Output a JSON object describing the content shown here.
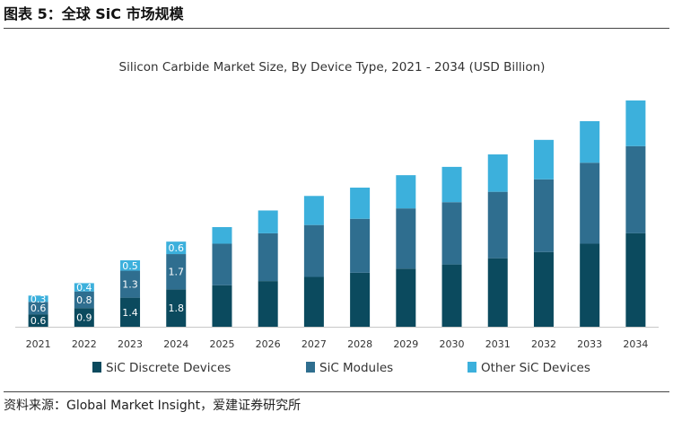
{
  "figure": {
    "title": "图表 5：全球 SiC 市场规模",
    "source": "资料来源：Global Market Insight，爱建证券研究所"
  },
  "chart_data": {
    "type": "bar",
    "stacked": true,
    "title": "Silicon Carbide Market Size, By Device Type, 2021 - 2034 (USD Billion)",
    "xlabel": "",
    "ylabel": "",
    "categories": [
      "2021",
      "2022",
      "2023",
      "2024",
      "2025",
      "2026",
      "2027",
      "2028",
      "2029",
      "2030",
      "2031",
      "2032",
      "2033",
      "2034"
    ],
    "series": [
      {
        "name": "SiC Discrete Devices",
        "color": "#0b4a5e",
        "values": [
          0.6,
          0.9,
          1.4,
          1.8,
          2.0,
          2.2,
          2.4,
          2.6,
          2.8,
          3.0,
          3.3,
          3.6,
          4.0,
          4.5
        ],
        "labels": [
          "0.6",
          "0.9",
          "1.4",
          "1.8",
          null,
          null,
          null,
          null,
          null,
          null,
          null,
          null,
          null,
          null
        ]
      },
      {
        "name": "SiC Modules",
        "color": "#2f6e8f",
        "values": [
          0.6,
          0.8,
          1.3,
          1.7,
          2.0,
          2.3,
          2.5,
          2.6,
          2.9,
          3.0,
          3.2,
          3.5,
          3.9,
          4.2
        ],
        "labels": [
          "0.6",
          "0.8",
          "1.3",
          "1.7",
          null,
          null,
          null,
          null,
          null,
          null,
          null,
          null,
          null,
          null
        ]
      },
      {
        "name": "Other SiC Devices",
        "color": "#3cb0dc",
        "values": [
          0.3,
          0.4,
          0.5,
          0.6,
          0.8,
          1.1,
          1.4,
          1.5,
          1.6,
          1.7,
          1.8,
          1.9,
          2.0,
          2.2
        ],
        "labels": [
          "0.3",
          "0.4",
          "0.5",
          "0.6",
          null,
          null,
          null,
          null,
          null,
          null,
          null,
          null,
          null,
          null
        ]
      }
    ],
    "ylim": [
      0,
      11.5
    ],
    "grid": false,
    "legend": "bottom"
  }
}
